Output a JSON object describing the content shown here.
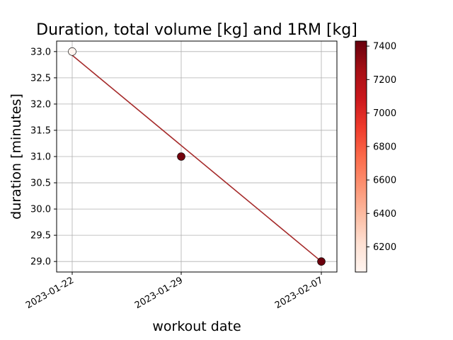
{
  "chart_data": {
    "type": "scatter",
    "title": "Duration, total volume [kg] and 1RM [kg]",
    "xlabel": "workout date",
    "ylabel": "duration [minutes]",
    "x_tick_labels": [
      "2023-01-22",
      "2023-01-29",
      "2023-02-07"
    ],
    "x_tick_values": [
      "2023-01-22",
      "2023-01-29",
      "2023-02-07"
    ],
    "xlim": [
      "2023-01-21",
      "2023-02-08"
    ],
    "y_ticks": [
      29.0,
      29.5,
      30.0,
      30.5,
      31.0,
      31.5,
      32.0,
      32.5,
      33.0
    ],
    "y_tick_labels": [
      "29.0",
      "29.5",
      "30.0",
      "30.5",
      "31.0",
      "31.5",
      "32.0",
      "32.5",
      "33.0"
    ],
    "ylim": [
      28.8,
      33.2
    ],
    "grid": true,
    "points": [
      {
        "x": "2023-01-22",
        "y": 33.0,
        "color_value": 6050
      },
      {
        "x": "2023-01-29",
        "y": 31.0,
        "color_value": 7400
      },
      {
        "x": "2023-02-07",
        "y": 29.0,
        "color_value": 7420
      }
    ],
    "trend_line": {
      "x": [
        "2023-01-22",
        "2023-02-07"
      ],
      "y": [
        32.93,
        29.0
      ],
      "color": "#a52a2a"
    },
    "colorbar": {
      "colormap": "Reds",
      "range": [
        6050,
        7430
      ],
      "ticks": [
        6200,
        6400,
        6600,
        6800,
        7000,
        7200,
        7400
      ],
      "tick_labels": [
        "6200",
        "6400",
        "6600",
        "6800",
        "7000",
        "7200",
        "7400"
      ]
    }
  }
}
